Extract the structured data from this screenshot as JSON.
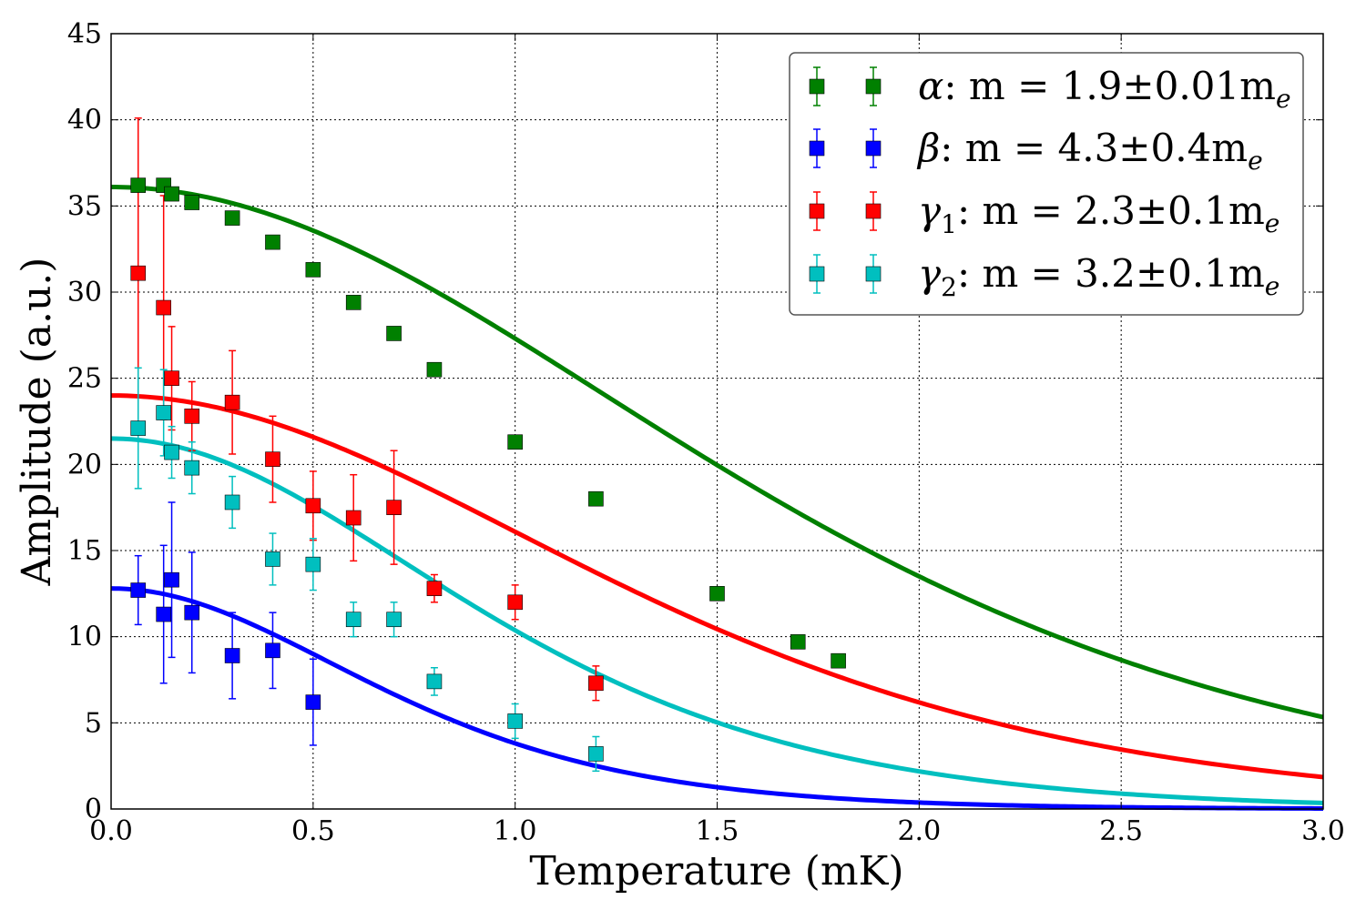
{
  "chart_data": {
    "type": "scatter",
    "xlabel": "Temperature (mK)",
    "ylabel": "Amplitude (a.u.)",
    "xlim": [
      0,
      3.0
    ],
    "ylim": [
      0,
      45
    ],
    "xticks": [
      "0.0",
      "0.5",
      "1.0",
      "1.5",
      "2.0",
      "2.5",
      "3.0"
    ],
    "yticks": [
      "0",
      "5",
      "10",
      "15",
      "20",
      "25",
      "30",
      "35",
      "40",
      "45"
    ],
    "grid": true,
    "legend_position": "top-right",
    "series": [
      {
        "name": "alpha",
        "label_symbol": "α",
        "label_text": ": ",
        "mass_label": "m = 1.9±0.01m",
        "mass_sub": "e",
        "color": "#008000",
        "fit_amplitude": 36.1,
        "fit_mass_ratio": 1.9,
        "x": [
          0.067,
          0.13,
          0.15,
          0.2,
          0.3,
          0.4,
          0.5,
          0.6,
          0.7,
          0.8,
          1.0,
          1.2,
          1.5,
          1.7,
          1.8
        ],
        "y": [
          36.2,
          36.2,
          35.7,
          35.2,
          34.3,
          32.9,
          31.3,
          29.4,
          27.6,
          25.5,
          21.3,
          18.0,
          12.5,
          9.7,
          8.6
        ],
        "err": [
          0.1,
          0.1,
          0.1,
          0.1,
          0.1,
          0.1,
          0.1,
          0.1,
          0.1,
          0.1,
          0.1,
          0.1,
          0.1,
          0.1,
          0.1
        ]
      },
      {
        "name": "beta",
        "label_symbol": "β",
        "label_text": ": ",
        "mass_label": "m = 4.3±0.4m",
        "mass_sub": "e",
        "color": "#0000ff",
        "fit_amplitude": 12.8,
        "fit_mass_ratio": 4.3,
        "x": [
          0.067,
          0.13,
          0.15,
          0.2,
          0.3,
          0.4,
          0.5
        ],
        "y": [
          12.7,
          11.3,
          13.3,
          11.4,
          8.9,
          9.2,
          6.2
        ],
        "err": [
          2.0,
          4.0,
          4.5,
          3.5,
          2.5,
          2.2,
          2.5
        ]
      },
      {
        "name": "gamma1",
        "label_symbol": "γ",
        "label_sub": "1",
        "label_text": ": ",
        "mass_label": "m = 2.3±0.1m",
        "mass_sub": "e",
        "color": "#ff0000",
        "fit_amplitude": 24.0,
        "fit_mass_ratio": 2.3,
        "x": [
          0.067,
          0.13,
          0.15,
          0.2,
          0.3,
          0.4,
          0.5,
          0.6,
          0.7,
          0.8,
          1.0,
          1.2
        ],
        "y": [
          31.1,
          29.1,
          25.0,
          22.8,
          23.6,
          20.3,
          17.6,
          16.9,
          17.5,
          12.8,
          12.0,
          7.3
        ],
        "err": [
          9.0,
          6.5,
          3.0,
          2.0,
          3.0,
          2.5,
          2.0,
          2.5,
          3.3,
          0.8,
          1.0,
          1.0
        ]
      },
      {
        "name": "gamma2",
        "label_symbol": "γ",
        "label_sub": "2",
        "label_text": ": ",
        "mass_label": "m = 3.2±0.1m",
        "mass_sub": "e",
        "color": "#00bfbf",
        "fit_amplitude": 21.5,
        "fit_mass_ratio": 3.2,
        "x": [
          0.067,
          0.13,
          0.15,
          0.2,
          0.3,
          0.4,
          0.5,
          0.6,
          0.7,
          0.8,
          1.0,
          1.2
        ],
        "y": [
          22.1,
          23.0,
          20.7,
          19.8,
          17.8,
          14.5,
          14.2,
          11.0,
          11.0,
          7.4,
          5.1,
          3.2
        ],
        "err": [
          3.5,
          2.5,
          1.5,
          1.5,
          1.5,
          1.5,
          1.5,
          1.0,
          1.0,
          0.8,
          1.0,
          1.0
        ]
      }
    ]
  }
}
